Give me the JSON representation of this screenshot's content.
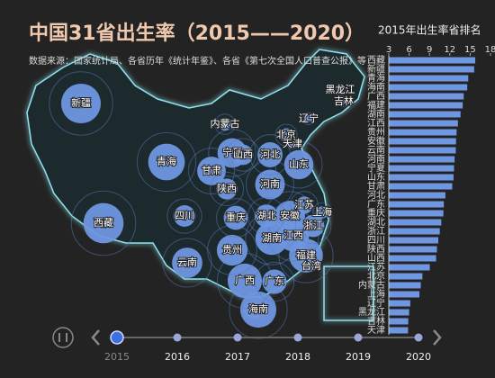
{
  "title": "中国31省出生率（2015——2020）",
  "subtitle": "数据来源：国家统计局、各省历年《统计年鉴》、各省《第七次全国人口普查公报》等",
  "map_labels": [
    "台湾"
  ],
  "timeline": [
    2015,
    2016,
    2017,
    2018,
    2019,
    2020
  ],
  "chart_data": {
    "type": "bar",
    "orientation": "horizontal",
    "title": "2015年出生率省排名",
    "categories": [
      "西藏",
      "新疆",
      "青海",
      "海南",
      "广西",
      "福建",
      "湖南",
      "江西",
      "贵州",
      "安徽",
      "云南",
      "河南",
      "宁夏",
      "山东",
      "甘肃",
      "河北",
      "广东",
      "重庆",
      "湖北",
      "浙江",
      "四川",
      "陕西",
      "山西",
      "江苏",
      "北京",
      "内蒙古",
      "上海",
      "辽宁",
      "黑龙江",
      "吉林",
      "天津"
    ],
    "values": [
      15.75,
      15.59,
      14.72,
      14.57,
      14.05,
      13.9,
      13.58,
      13.2,
      13.0,
      12.92,
      12.88,
      12.7,
      12.62,
      12.55,
      12.36,
      11.35,
      11.12,
      11.05,
      10.74,
      10.52,
      10.3,
      10.1,
      9.98,
      9.05,
      7.96,
      7.72,
      7.52,
      6.17,
      6.0,
      5.87,
      5.84
    ],
    "color": "#6f96e0",
    "xlim": [
      3,
      18
    ],
    "xticks": [
      3,
      6,
      9,
      12,
      15,
      18
    ]
  }
}
